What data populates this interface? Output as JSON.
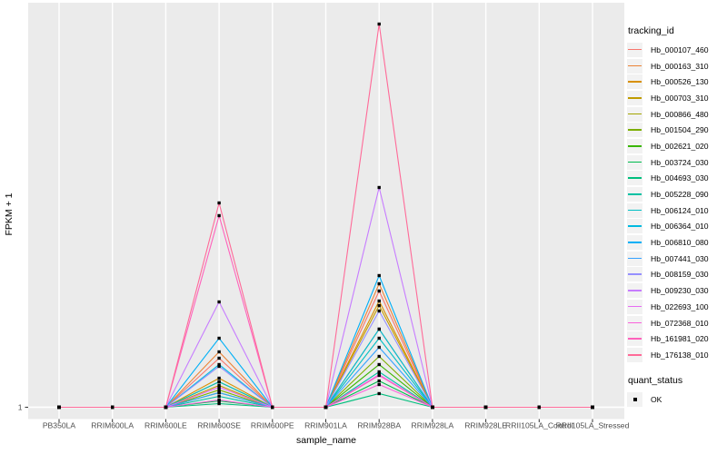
{
  "chart_data": {
    "type": "line",
    "title": "",
    "xlabel": "sample_name",
    "ylabel": "FPKM + 1",
    "x_categories": [
      "PB350LA",
      "RRIM600LA",
      "RRIM600LE",
      "RRIM600SE",
      "RRIM600PE",
      "RRIM901LA",
      "RRIM928BA",
      "RRIM928LA",
      "RRIM928LE",
      "RRII105LA_Control",
      "RRII105LA_Stressed"
    ],
    "y_tick_labels": [
      "1"
    ],
    "values_scale": "relative height above the y=1 baseline; only '1' is labeled on the y-axis, peaks estimated from pixel heights",
    "grid": "vertical major gridlines on gray panel",
    "legend_position": "right",
    "marker": {
      "shape": "square",
      "color": "#000000"
    },
    "panel_bg": "#EBEBEB",
    "grid_color": "#FFFFFF",
    "tick_text_color": "#4D4D4D",
    "legends": {
      "color": {
        "title": "tracking_id"
      },
      "shape": {
        "title": "quant_status",
        "items": [
          {
            "label": "OK"
          }
        ]
      }
    },
    "series": [
      {
        "name": "Hb_000107_460",
        "color": "#F8766D",
        "values": [
          0,
          0,
          0,
          54,
          0,
          0,
          128,
          0,
          0,
          0,
          0
        ]
      },
      {
        "name": "Hb_000163_310",
        "color": "#EB8335",
        "values": [
          0,
          0,
          0,
          61,
          0,
          0,
          136,
          0,
          0,
          0,
          0
        ]
      },
      {
        "name": "Hb_000526_130",
        "color": "#D89000",
        "values": [
          0,
          0,
          0,
          32,
          0,
          0,
          117,
          0,
          0,
          0,
          0
        ]
      },
      {
        "name": "Hb_000703_310",
        "color": "#C09B00",
        "values": [
          0,
          0,
          0,
          24,
          0,
          0,
          112,
          0,
          0,
          0,
          0
        ]
      },
      {
        "name": "Hb_000866_480",
        "color": "#A3A500",
        "values": [
          0,
          0,
          0,
          28,
          0,
          0,
          86,
          0,
          0,
          0,
          0
        ]
      },
      {
        "name": "Hb_001504_290",
        "color": "#7CAE00",
        "values": [
          0,
          0,
          0,
          19,
          0,
          0,
          56,
          0,
          0,
          0,
          0
        ]
      },
      {
        "name": "Hb_002621_020",
        "color": "#39B600",
        "values": [
          0,
          0,
          0,
          16,
          0,
          0,
          47,
          0,
          0,
          0,
          0
        ]
      },
      {
        "name": "Hb_003724_030",
        "color": "#00BB4E",
        "values": [
          0,
          0,
          0,
          7,
          0,
          0,
          29,
          0,
          0,
          0,
          0
        ]
      },
      {
        "name": "Hb_004693_030",
        "color": "#00BF7D",
        "values": [
          0,
          0,
          0,
          4,
          0,
          0,
          15,
          0,
          0,
          0,
          0
        ]
      },
      {
        "name": "Hb_005228_090",
        "color": "#00C1A3",
        "values": [
          0,
          0,
          0,
          12,
          0,
          0,
          39,
          0,
          0,
          0,
          0
        ]
      },
      {
        "name": "Hb_006124_010",
        "color": "#00BFC4",
        "values": [
          0,
          0,
          0,
          28,
          0,
          0,
          76,
          0,
          0,
          0,
          0
        ]
      },
      {
        "name": "Hb_006364_010",
        "color": "#00BAE0",
        "values": [
          0,
          0,
          0,
          47,
          0,
          0,
          86,
          0,
          0,
          0,
          0
        ]
      },
      {
        "name": "Hb_006810_080",
        "color": "#00B0F6",
        "values": [
          0,
          0,
          0,
          76,
          0,
          0,
          145,
          0,
          0,
          0,
          0
        ]
      },
      {
        "name": "Hb_007441_030",
        "color": "#35A2FF",
        "values": [
          0,
          0,
          0,
          16,
          0,
          0,
          66,
          0,
          0,
          0,
          0
        ]
      },
      {
        "name": "Hb_008159_030",
        "color": "#9590FF",
        "values": [
          0,
          0,
          0,
          45,
          0,
          0,
          106,
          0,
          0,
          0,
          0
        ]
      },
      {
        "name": "Hb_009230_030",
        "color": "#C77CFF",
        "values": [
          0,
          0,
          0,
          116,
          0,
          0,
          242,
          0,
          0,
          0,
          0
        ]
      },
      {
        "name": "Hb_022693_100",
        "color": "#E76BF3",
        "values": [
          0,
          0,
          0,
          22,
          0,
          0,
          36,
          0,
          0,
          0,
          0
        ]
      },
      {
        "name": "Hb_072368_010",
        "color": "#FA62DB",
        "values": [
          0,
          0,
          0,
          8,
          0,
          0,
          25,
          0,
          0,
          0,
          0
        ]
      },
      {
        "name": "Hb_161981_020",
        "color": "#FF62BC",
        "values": [
          0,
          0,
          0,
          211,
          0,
          0,
          35,
          0,
          0,
          0,
          0
        ]
      },
      {
        "name": "Hb_176138_010",
        "color": "#FF6A98",
        "values": [
          0,
          0,
          0,
          225,
          0,
          0,
          422,
          0,
          0,
          0,
          0
        ]
      }
    ]
  }
}
